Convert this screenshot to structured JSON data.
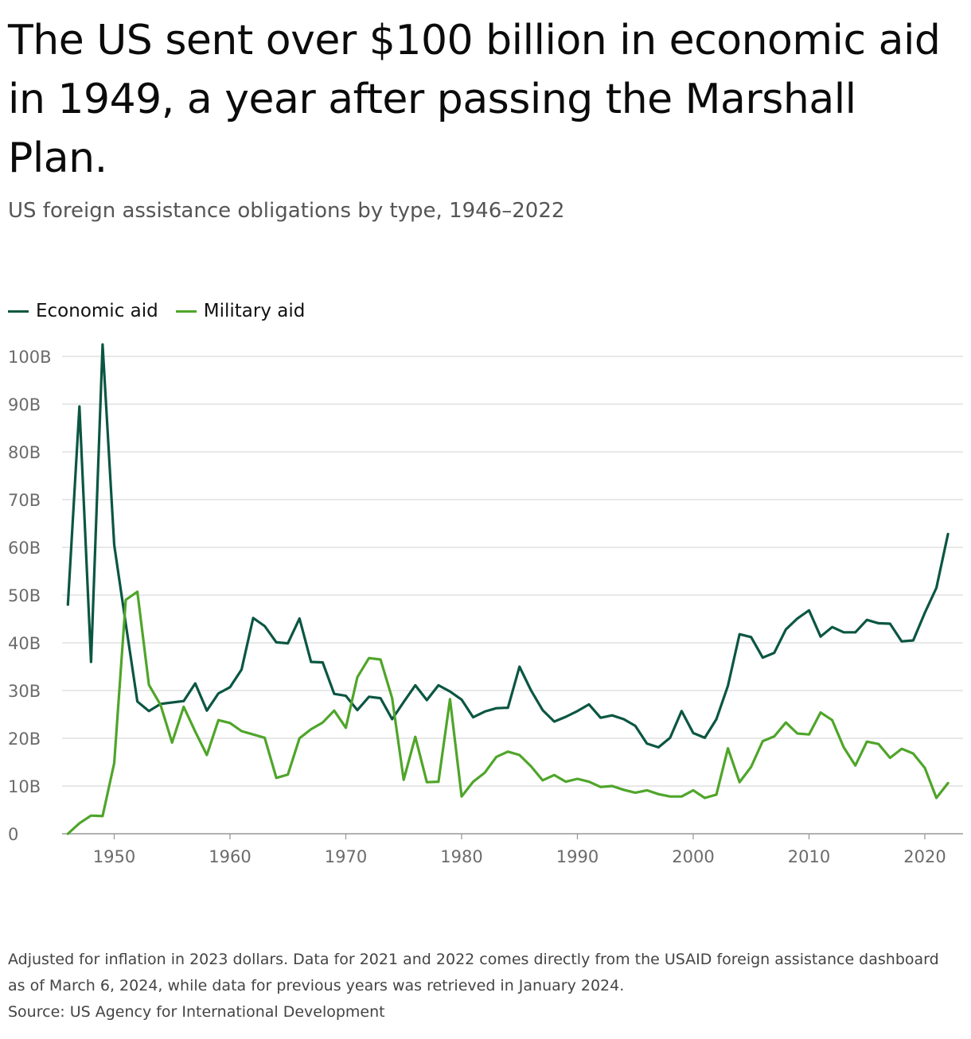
{
  "title": "The US sent over $100 billion in economic aid in 1949, a year after passing the Marshall Plan.",
  "subtitle": "US foreign assistance obligations by type, 1946–2022",
  "footer": {
    "note": "Adjusted for inflation in 2023 dollars. Data for 2021 and 2022 comes directly from the USAID foreign assistance dashboard as of March 6, 2024, while data for previous years was retrieved in January 2024.",
    "source": "Source: US Agency for International Development"
  },
  "colors": {
    "economic": "#0b5642",
    "military": "#4fa52a",
    "grid": "#d9d9d9",
    "axis": "#999999"
  },
  "chart_data": {
    "type": "line",
    "title": "US foreign assistance obligations by type, 1946–2022",
    "xlabel": "",
    "ylabel": "",
    "xlim": [
      1945.5,
      2023.3
    ],
    "ylim": [
      0,
      105
    ],
    "y_ticks": [
      {
        "value": 0,
        "label": "0"
      },
      {
        "value": 10,
        "label": "10B"
      },
      {
        "value": 20,
        "label": "20B"
      },
      {
        "value": 30,
        "label": "30B"
      },
      {
        "value": 40,
        "label": "40B"
      },
      {
        "value": 50,
        "label": "50B"
      },
      {
        "value": 60,
        "label": "60B"
      },
      {
        "value": 70,
        "label": "70B"
      },
      {
        "value": 80,
        "label": "80B"
      },
      {
        "value": 90,
        "label": "90B"
      },
      {
        "value": 100,
        "label": "100B"
      }
    ],
    "x_ticks": [
      {
        "value": 1950,
        "label": "1950"
      },
      {
        "value": 1960,
        "label": "1960"
      },
      {
        "value": 1970,
        "label": "1970"
      },
      {
        "value": 1980,
        "label": "1980"
      },
      {
        "value": 1990,
        "label": "1990"
      },
      {
        "value": 2000,
        "label": "2000"
      },
      {
        "value": 2010,
        "label": "2010"
      },
      {
        "value": 2020,
        "label": "2020"
      }
    ],
    "grid": true,
    "legend": "top-left",
    "x": [
      1946,
      1947,
      1948,
      1949,
      1950,
      1951,
      1952,
      1953,
      1954,
      1955,
      1956,
      1957,
      1958,
      1959,
      1960,
      1961,
      1962,
      1963,
      1964,
      1965,
      1966,
      1967,
      1968,
      1969,
      1970,
      1971,
      1972,
      1973,
      1974,
      1975,
      1976,
      1977,
      1978,
      1979,
      1980,
      1981,
      1982,
      1983,
      1984,
      1985,
      1986,
      1987,
      1988,
      1989,
      1990,
      1991,
      1992,
      1993,
      1994,
      1995,
      1996,
      1997,
      1998,
      1999,
      2000,
      2001,
      2002,
      2003,
      2004,
      2005,
      2006,
      2007,
      2008,
      2009,
      2010,
      2011,
      2012,
      2013,
      2014,
      2015,
      2016,
      2017,
      2018,
      2019,
      2020,
      2021,
      2022
    ],
    "series": [
      {
        "name": "Economic aid",
        "color": "#0b5642",
        "values": [
          48.0,
          89.5,
          36.0,
          102.5,
          60.5,
          44.0,
          27.7,
          25.7,
          27.2,
          27.5,
          27.8,
          31.5,
          25.8,
          29.4,
          30.7,
          34.4,
          45.2,
          43.5,
          40.1,
          39.9,
          45.1,
          36.0,
          35.9,
          29.3,
          28.9,
          25.9,
          28.7,
          28.4,
          24.0,
          27.6,
          31.1,
          28.0,
          31.1,
          29.8,
          28.1,
          24.4,
          25.6,
          26.3,
          26.4,
          35.0,
          30.0,
          25.9,
          23.5,
          24.5,
          25.7,
          27.1,
          24.3,
          24.8,
          24.0,
          22.6,
          18.9,
          18.1,
          20.1,
          25.7,
          21.1,
          20.1,
          24.0,
          31.0,
          41.8,
          41.2,
          36.9,
          37.9,
          42.8,
          45.1,
          46.8,
          41.3,
          43.3,
          42.2,
          42.2,
          44.8,
          44.1,
          44.0,
          40.3,
          40.5,
          46.3,
          51.5,
          62.8
        ]
      },
      {
        "name": "Military aid",
        "color": "#4fa52a",
        "values": [
          0.0,
          2.2,
          3.8,
          3.7,
          14.8,
          49.0,
          50.7,
          31.2,
          27.0,
          19.1,
          26.6,
          21.4,
          16.5,
          23.8,
          23.2,
          21.5,
          20.8,
          20.1,
          11.7,
          12.4,
          20.0,
          21.9,
          23.3,
          25.8,
          22.2,
          32.8,
          36.8,
          36.5,
          28.4,
          11.3,
          20.3,
          10.8,
          10.9,
          28.2,
          7.8,
          10.9,
          12.8,
          16.1,
          17.2,
          16.5,
          14.1,
          11.2,
          12.3,
          10.9,
          11.5,
          10.9,
          9.8,
          10.0,
          9.2,
          8.6,
          9.1,
          8.3,
          7.8,
          7.8,
          9.1,
          7.5,
          8.2,
          17.9,
          10.8,
          14.0,
          19.4,
          20.4,
          23.3,
          21.0,
          20.8,
          25.4,
          23.8,
          18.1,
          14.3,
          19.3,
          18.8,
          15.9,
          17.8,
          16.8,
          13.8,
          7.5,
          10.6
        ]
      }
    ]
  }
}
